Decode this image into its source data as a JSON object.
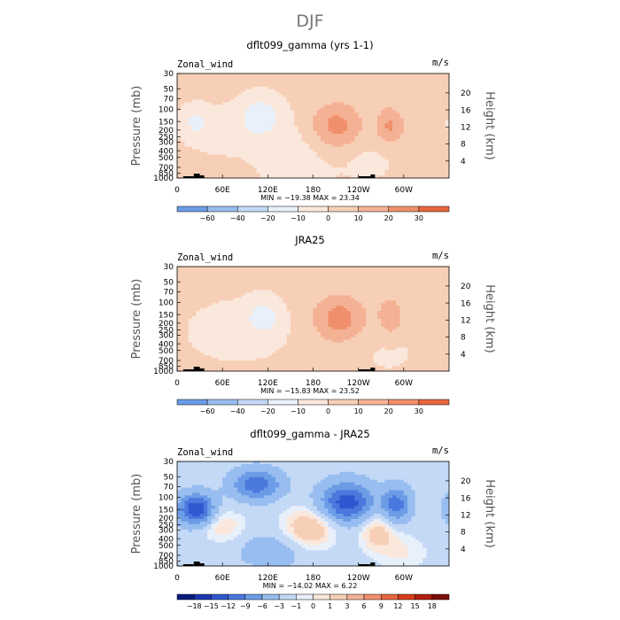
{
  "main_title": "DJF",
  "colors": {
    "pos": [
      "#fbe8dc",
      "#f7cfb7",
      "#f4b194",
      "#f08f6c",
      "#e8663e",
      "#d93d1a",
      "#b51d0c",
      "#7d0d06"
    ],
    "neg": [
      "#e8f0fb",
      "#c4d9f6",
      "#98bdf0",
      "#6c9ce6",
      "#4a78dd",
      "#3057cf",
      "#1b36b0",
      "#0a1a7e",
      "#00004f"
    ]
  },
  "chart_data": [
    {
      "type": "heatmap",
      "title": "dflt099_gamma (yrs 1-1)",
      "variable": "Zonal_wind",
      "units": "m/s",
      "ylabel": "Pressure (mb)",
      "ylabel_right": "Height (km)",
      "pressure_ticks": [
        "30",
        "50",
        "70",
        "100",
        "150",
        "200",
        "250",
        "300",
        "400",
        "500",
        "700",
        "850",
        "1000"
      ],
      "height_ticks": [
        "4",
        "8",
        "12",
        "16",
        "20"
      ],
      "x_ticks": [
        "0",
        "60E",
        "120E",
        "180",
        "120W",
        "60W"
      ],
      "stats": "MIN = −19.38   MAX =  23.34",
      "levels": [
        -60,
        -40,
        -20,
        -10,
        0,
        10,
        20,
        30
      ],
      "colorbar_labels": [
        "−60",
        "−40",
        "−20",
        "−10",
        "0",
        "10",
        "20",
        "30"
      ],
      "features": [
        {
          "lon": 210,
          "p": 175,
          "dlon": 24,
          "dp": 0.55,
          "amp": 23
        },
        {
          "lon": 282,
          "p": 175,
          "dlon": 13,
          "dp": 0.45,
          "amp": 19
        },
        {
          "lon": 110,
          "p": 125,
          "dlon": 18,
          "dp": 0.45,
          "amp": -18
        },
        {
          "lon": 24,
          "p": 150,
          "dlon": 11,
          "dp": 0.32,
          "amp": -13
        },
        {
          "lon": 160,
          "p": 450,
          "dlon": 38,
          "dp": 0.9,
          "amp": -6
        },
        {
          "lon": 60,
          "p": 200,
          "dlon": 40,
          "dp": 0.6,
          "amp": -5
        },
        {
          "lon": 255,
          "p": 550,
          "dlon": 25,
          "dp": 0.5,
          "amp": -4
        }
      ],
      "base": 2
    },
    {
      "type": "heatmap",
      "title": "JRA25",
      "variable": "Zonal_wind",
      "units": "m/s",
      "ylabel": "Pressure (mb)",
      "ylabel_right": "Height (km)",
      "pressure_ticks": [
        "30",
        "50",
        "70",
        "100",
        "150",
        "200",
        "250",
        "300",
        "400",
        "500",
        "700",
        "850",
        "1000"
      ],
      "height_ticks": [
        "4",
        "8",
        "12",
        "16",
        "20"
      ],
      "x_ticks": [
        "0",
        "60E",
        "120E",
        "180",
        "120W",
        "60W"
      ],
      "stats": "MIN = −15.83   MAX =  23.52",
      "levels": [
        -60,
        -40,
        -20,
        -10,
        0,
        10,
        20,
        30
      ],
      "colorbar_labels": [
        "−60",
        "−40",
        "−20",
        "−10",
        "0",
        "10",
        "20",
        "30"
      ],
      "features": [
        {
          "lon": 215,
          "p": 170,
          "dlon": 25,
          "dp": 0.55,
          "amp": 23
        },
        {
          "lon": 283,
          "p": 160,
          "dlon": 11,
          "dp": 0.45,
          "amp": 17
        },
        {
          "lon": 115,
          "p": 160,
          "dlon": 15,
          "dp": 0.4,
          "amp": -15
        },
        {
          "lon": 80,
          "p": 260,
          "dlon": 45,
          "dp": 0.7,
          "amp": -6
        },
        {
          "lon": 280,
          "p": 520,
          "dlon": 30,
          "dp": 0.6,
          "amp": -3
        }
      ],
      "base": 2
    },
    {
      "type": "heatmap",
      "title": "dflt099_gamma - JRA25",
      "variable": "Zonal_wind",
      "units": "m/s",
      "ylabel": "Pressure (mb)",
      "ylabel_right": "Height (km)",
      "pressure_ticks": [
        "30",
        "50",
        "70",
        "100",
        "150",
        "200",
        "250",
        "300",
        "400",
        "500",
        "700",
        "850",
        "1000"
      ],
      "height_ticks": [
        "4",
        "8",
        "12",
        "16",
        "20"
      ],
      "x_ticks": [
        "0",
        "60E",
        "120E",
        "180",
        "120W",
        "60W"
      ],
      "stats": "MIN = −14.02   MAX =     6.22",
      "levels": [
        -18,
        -15,
        -12,
        -9,
        -6,
        -3,
        -1,
        0,
        1,
        3,
        6,
        9,
        12,
        15,
        18
      ],
      "colorbar_labels": [
        "−18",
        "−15",
        "−12",
        "−9",
        "−6",
        "−3",
        "−1",
        "0",
        "1",
        "3",
        "6",
        "9",
        "12",
        "15",
        "18"
      ],
      "features": [
        {
          "lon": 25,
          "p": 150,
          "dlon": 16,
          "dp": 0.35,
          "amp": -13
        },
        {
          "lon": 225,
          "p": 120,
          "dlon": 24,
          "dp": 0.45,
          "amp": -12
        },
        {
          "lon": 290,
          "p": 130,
          "dlon": 13,
          "dp": 0.4,
          "amp": -9
        },
        {
          "lon": 105,
          "p": 65,
          "dlon": 22,
          "dp": 0.35,
          "amp": -9
        },
        {
          "lon": 175,
          "p": 280,
          "dlon": 25,
          "dp": 0.5,
          "amp": 5
        },
        {
          "lon": 265,
          "p": 300,
          "dlon": 18,
          "dp": 0.5,
          "amp": 4
        },
        {
          "lon": 60,
          "p": 260,
          "dlon": 22,
          "dp": 0.4,
          "amp": 3
        },
        {
          "lon": 125,
          "p": 600,
          "dlon": 30,
          "dp": 0.4,
          "amp": -3
        },
        {
          "lon": 300,
          "p": 650,
          "dlon": 25,
          "dp": 0.5,
          "amp": 2
        }
      ],
      "base": -2
    }
  ]
}
